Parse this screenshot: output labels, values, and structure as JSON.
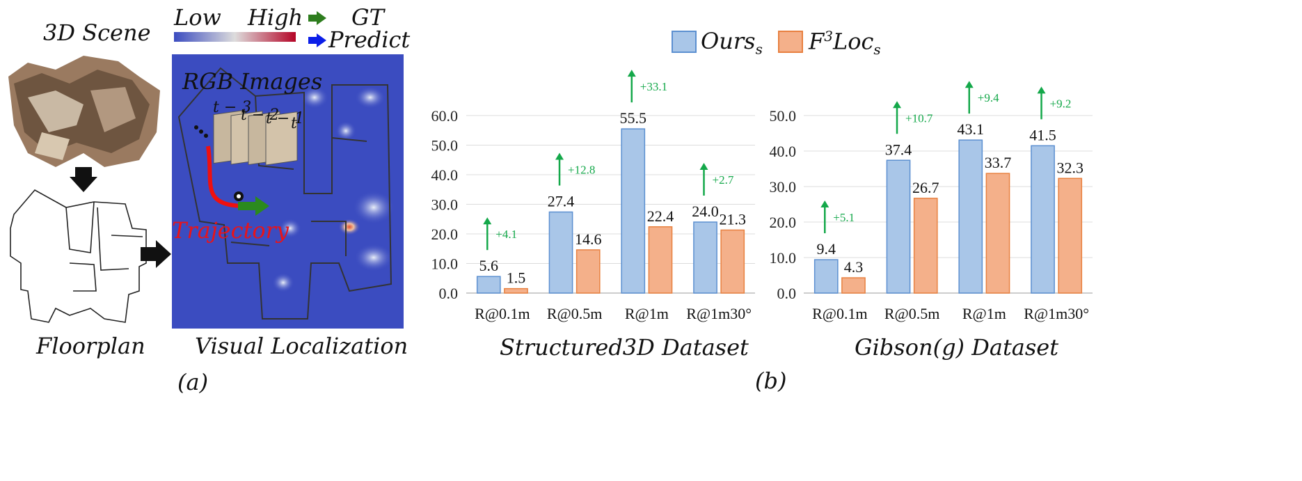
{
  "panel_a": {
    "scene_label": "3D Scene",
    "floorplan_label": "Floorplan",
    "heat_low": "Low",
    "heat_high": "High",
    "legend_gt": "GT",
    "legend_predict": "Predict",
    "rgb_label": "RGB Images",
    "time_labels": [
      "t − 3",
      "t − 2",
      "t − 1",
      "t"
    ],
    "trajectory_label": "Trajectory",
    "visual_label": "Visual Localization",
    "caption": "(a)"
  },
  "panel_b": {
    "caption": "(b)",
    "legend": [
      "Ours_s",
      "F^3Loc_s"
    ],
    "legend_ours_main": "Ours",
    "legend_ours_sub": "s",
    "legend_f3_main": "F",
    "legend_f3_sup": "3",
    "legend_f3_rest": "Loc",
    "legend_f3_sub": "s",
    "colors": {
      "ours": "#a9c6e8",
      "ours_edge": "#5b8fd0",
      "f3loc": "#f4b08a",
      "f3loc_edge": "#e8803f",
      "gain": "#14a84a"
    }
  },
  "chart_data": [
    {
      "type": "bar",
      "title": "Structured3D Dataset",
      "categories": [
        "R@0.1m",
        "R@0.5m",
        "R@1m",
        "R@1m30°"
      ],
      "series": [
        {
          "name": "Ours_s",
          "values": [
            5.6,
            27.4,
            55.5,
            24.0
          ]
        },
        {
          "name": "F^3Loc_s",
          "values": [
            1.5,
            14.6,
            22.4,
            21.3
          ]
        }
      ],
      "gains": [
        "+4.1",
        "+12.8",
        "+33.1",
        "+2.7"
      ],
      "ylim": [
        0,
        60
      ],
      "yticks": [
        "0.0",
        "10.0",
        "20.0",
        "30.0",
        "40.0",
        "50.0",
        "60.0"
      ],
      "grid": true
    },
    {
      "type": "bar",
      "title": "Gibson(g) Dataset",
      "categories": [
        "R@0.1m",
        "R@0.5m",
        "R@1m",
        "R@1m30°"
      ],
      "series": [
        {
          "name": "Ours_s",
          "values": [
            9.4,
            37.4,
            43.1,
            41.5
          ]
        },
        {
          "name": "F^3Loc_s",
          "values": [
            4.3,
            26.7,
            33.7,
            32.3
          ]
        }
      ],
      "gains": [
        "+5.1",
        "+10.7",
        "+9.4",
        "+9.2"
      ],
      "ylim": [
        0,
        50
      ],
      "yticks": [
        "0.0",
        "10.0",
        "20.0",
        "30.0",
        "40.0",
        "50.0"
      ],
      "grid": true
    }
  ]
}
